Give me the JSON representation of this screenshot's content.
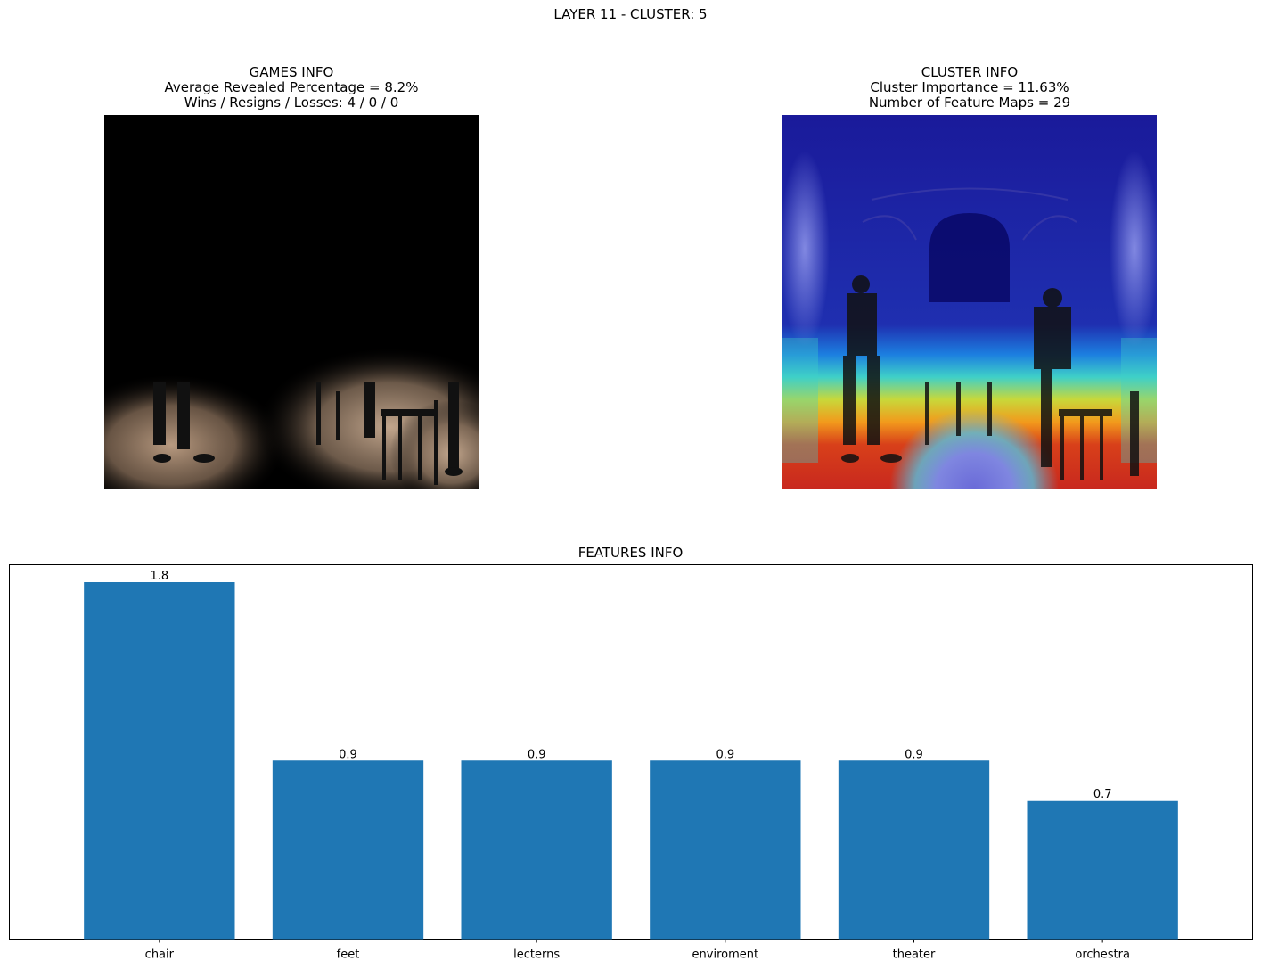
{
  "figure": {
    "suptitle": "LAYER 11 - CLUSTER: 5"
  },
  "games_info": {
    "title": "GAMES INFO",
    "line1": "Average Revealed Percentage = 8.2%",
    "line2": "Wins / Resigns / Losses: 4 / 0 / 0"
  },
  "cluster_info": {
    "title": "CLUSTER INFO",
    "line1": "Cluster Importance = 11.63%",
    "line2": "Number of Feature Maps = 29"
  },
  "colors": {
    "bar": "#1f77b4"
  },
  "chart_data": {
    "type": "bar",
    "title": "FEATURES INFO",
    "categories": [
      "chair",
      "feet",
      "lecterns",
      "enviroment",
      "theater",
      "orchestra"
    ],
    "values": [
      1.8,
      0.9,
      0.9,
      0.9,
      0.9,
      0.7
    ],
    "value_labels": [
      "1.8",
      "0.9",
      "0.9",
      "0.9",
      "0.9",
      "0.7"
    ],
    "xlabel": "",
    "ylabel": "",
    "ylim": [
      0,
      1.8
    ],
    "y_ticks_visible": false,
    "grid": false,
    "legend": "none"
  }
}
